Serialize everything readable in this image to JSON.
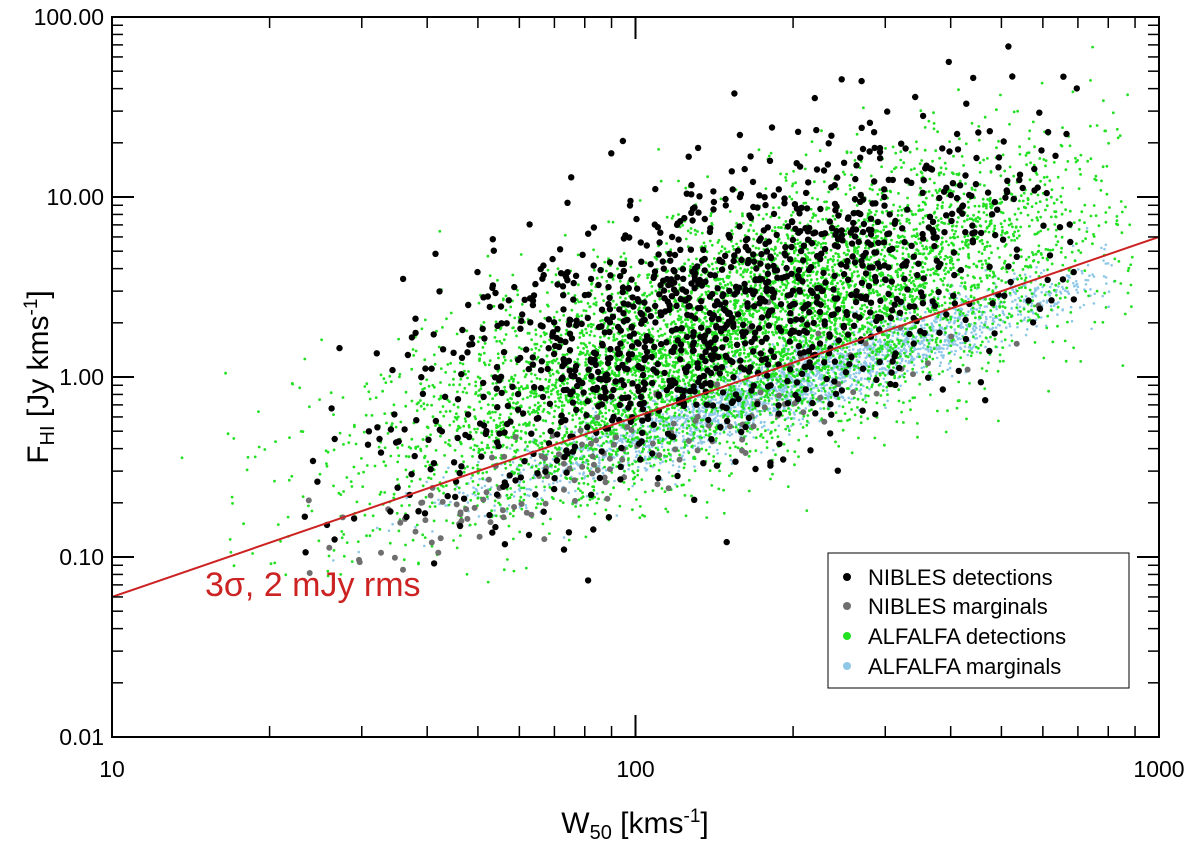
{
  "chart_data": {
    "type": "scatter",
    "title": "",
    "xlabel": {
      "main": "W",
      "sub": "50",
      "units": " [kms",
      "sup": "-1",
      "close": "]"
    },
    "ylabel": {
      "main": "F",
      "sub": "HI",
      "units": " [Jy kms",
      "sup": "-1",
      "close": "]"
    },
    "xscale": "log",
    "yscale": "log",
    "xlim": [
      10,
      1000
    ],
    "ylim": [
      0.01,
      100
    ],
    "x_ticks": [
      {
        "value": 10,
        "label": "10"
      },
      {
        "value": 100,
        "label": "100"
      },
      {
        "value": 1000,
        "label": "1000"
      }
    ],
    "y_ticks": [
      {
        "value": 0.01,
        "label": "0.01"
      },
      {
        "value": 0.1,
        "label": "0.10"
      },
      {
        "value": 1,
        "label": "1.00"
      },
      {
        "value": 10,
        "label": "10.00"
      },
      {
        "value": 100,
        "label": "100.00"
      }
    ],
    "grid": false,
    "legend": {
      "position": "bottom-right",
      "entries": [
        {
          "label": "NIBLES detections",
          "color": "#000000"
        },
        {
          "label": "NIBLES marginals",
          "color": "#6e6e6e"
        },
        {
          "label": "ALFALFA detections",
          "color": "#22e022"
        },
        {
          "label": "ALFALFA marginals",
          "color": "#8ec8e6"
        }
      ]
    },
    "reference_line": {
      "label": "3σ, 2 mJy rms",
      "color": "#cc2222",
      "x": [
        10,
        1000
      ],
      "y": [
        0.06,
        6.0
      ]
    },
    "series": [
      {
        "name": "ALFALFA marginals",
        "color": "#8ec8e6",
        "marker_r": 1.3,
        "n": 2600,
        "xmu": 2.32,
        "xsd": 0.28,
        "xmin": 1.2,
        "xmax": 2.92,
        "off_mu": -0.12,
        "off_sd": 0.1
      },
      {
        "name": "ALFALFA detections",
        "color": "#22e022",
        "marker_r": 1.4,
        "n": 6500,
        "xmu": 2.2,
        "xsd": 0.33,
        "xmin": 1.05,
        "xmax": 2.95,
        "off_mu": 0.24,
        "off_sd": 0.32
      },
      {
        "name": "NIBLES marginals",
        "color": "#6e6e6e",
        "marker_r": 3.0,
        "n": 150,
        "xmu": 1.95,
        "xsd": 0.34,
        "xmin": 1.3,
        "xmax": 2.8,
        "off_mu": -0.18,
        "off_sd": 0.15
      },
      {
        "name": "NIBLES detections",
        "color": "#000000",
        "marker_r": 3.2,
        "n": 1300,
        "xmu": 2.17,
        "xsd": 0.3,
        "xmin": 1.35,
        "xmax": 2.85,
        "off_mu": 0.4,
        "off_sd": 0.4
      }
    ]
  }
}
